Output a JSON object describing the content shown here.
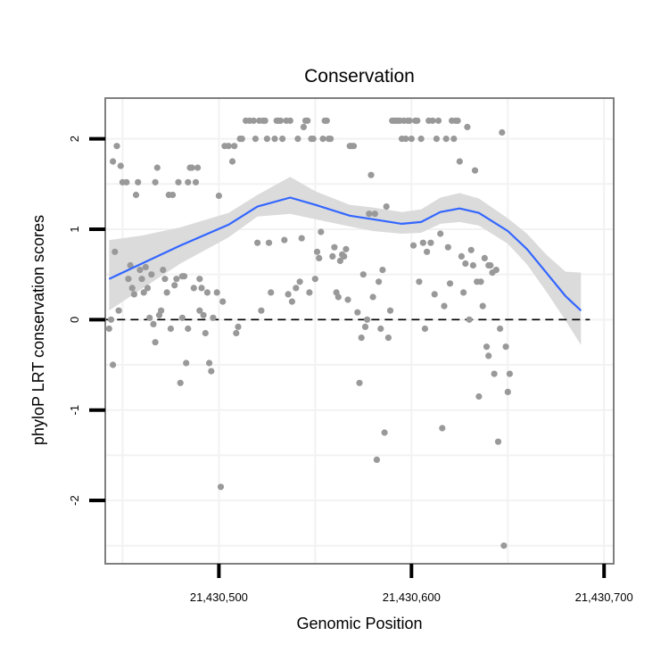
{
  "chart_data": {
    "type": "scatter",
    "title": "Conservation",
    "xlabel": "Genomic Position",
    "ylabel": "phyloP LRT conservation scores",
    "xlim": [
      21430441,
      21430705
    ],
    "ylim": [
      -2.7,
      2.45
    ],
    "x_ticks": [
      21430500,
      21430600,
      21430700
    ],
    "x_tick_labels": [
      "21,430,500",
      "21,430,600",
      "21,430,700"
    ],
    "y_ticks": [
      -2,
      -1,
      0,
      1,
      2
    ],
    "y_tick_labels": [
      "-2",
      "-1",
      "0",
      "1",
      "2"
    ],
    "grid": true,
    "reference_line": {
      "y": 0,
      "style": "dashed"
    },
    "colors": {
      "points": "#999999",
      "smooth": "#3366ff",
      "ribbon": "#d9d9d9",
      "border": "#7f7f7f",
      "grid": "#f2f2f2"
    },
    "smooth": {
      "x": [
        21430443,
        21430460,
        21430480,
        21430505,
        21430520,
        21430537,
        21430550,
        21430568,
        21430580,
        21430595,
        21430605,
        21430615,
        21430625,
        21430635,
        21430650,
        21430660,
        21430670,
        21430680,
        21430688
      ],
      "y": [
        0.45,
        0.62,
        0.82,
        1.05,
        1.25,
        1.35,
        1.27,
        1.15,
        1.11,
        1.06,
        1.08,
        1.19,
        1.23,
        1.18,
        0.98,
        0.78,
        0.52,
        0.26,
        0.1
      ],
      "upper": [
        0.88,
        0.93,
        1.02,
        1.18,
        1.38,
        1.58,
        1.42,
        1.27,
        1.24,
        1.19,
        1.22,
        1.35,
        1.4,
        1.34,
        1.12,
        0.95,
        0.72,
        0.53,
        0.52
      ],
      "lower": [
        0.1,
        0.34,
        0.62,
        0.91,
        1.14,
        1.17,
        1.11,
        1.03,
        0.98,
        0.95,
        0.96,
        1.06,
        1.08,
        1.04,
        0.84,
        0.61,
        0.31,
        -0.01,
        -0.28
      ]
    },
    "points": [
      [
        21430443,
        -0.1
      ],
      [
        21430444,
        0.0
      ],
      [
        21430445,
        -0.5
      ],
      [
        21430445,
        1.75
      ],
      [
        21430446,
        0.75
      ],
      [
        21430447,
        1.92
      ],
      [
        21430448,
        0.1
      ],
      [
        21430449,
        1.7
      ],
      [
        21430450,
        1.52
      ],
      [
        21430452,
        1.52
      ],
      [
        21430453,
        0.45
      ],
      [
        21430454,
        0.6
      ],
      [
        21430455,
        0.35
      ],
      [
        21430456,
        0.28
      ],
      [
        21430457,
        1.38
      ],
      [
        21430458,
        1.52
      ],
      [
        21430459,
        0.55
      ],
      [
        21430460,
        0.45
      ],
      [
        21430461,
        0.3
      ],
      [
        21430462,
        0.58
      ],
      [
        21430463,
        0.35
      ],
      [
        21430464,
        0.02
      ],
      [
        21430465,
        0.5
      ],
      [
        21430466,
        -0.05
      ],
      [
        21430467,
        -0.25
      ],
      [
        21430467,
        1.52
      ],
      [
        21430468,
        1.68
      ],
      [
        21430469,
        0.05
      ],
      [
        21430470,
        0.1
      ],
      [
        21430471,
        0.55
      ],
      [
        21430472,
        0.45
      ],
      [
        21430473,
        0.3
      ],
      [
        21430474,
        1.38
      ],
      [
        21430475,
        -0.1
      ],
      [
        21430476,
        1.38
      ],
      [
        21430477,
        0.38
      ],
      [
        21430478,
        0.45
      ],
      [
        21430479,
        1.52
      ],
      [
        21430480,
        -0.7
      ],
      [
        21430481,
        0.48
      ],
      [
        21430481,
        0.02
      ],
      [
        21430482,
        0.48
      ],
      [
        21430483,
        -0.48
      ],
      [
        21430484,
        -0.1
      ],
      [
        21430484,
        1.52
      ],
      [
        21430485,
        1.68
      ],
      [
        21430486,
        1.68
      ],
      [
        21430487,
        0.35
      ],
      [
        21430488,
        1.52
      ],
      [
        21430489,
        1.68
      ],
      [
        21430490,
        0.45
      ],
      [
        21430490,
        0.1
      ],
      [
        21430491,
        0.35
      ],
      [
        21430492,
        0.05
      ],
      [
        21430493,
        -0.15
      ],
      [
        21430494,
        0.3
      ],
      [
        21430495,
        -0.48
      ],
      [
        21430496,
        -0.57
      ],
      [
        21430497,
        0.02
      ],
      [
        21430499,
        0.3
      ],
      [
        21430500,
        1.37
      ],
      [
        21430501,
        -1.85
      ],
      [
        21430502,
        0.2
      ],
      [
        21430503,
        1.92
      ],
      [
        21430505,
        1.92
      ],
      [
        21430507,
        1.75
      ],
      [
        21430508,
        1.92
      ],
      [
        21430509,
        -0.15
      ],
      [
        21430510,
        -0.08
      ],
      [
        21430511,
        2.0
      ],
      [
        21430512,
        2.0
      ],
      [
        21430514,
        2.2
      ],
      [
        21430516,
        2.2
      ],
      [
        21430518,
        2.2
      ],
      [
        21430519,
        2.0
      ],
      [
        21430520,
        0.85
      ],
      [
        21430521,
        2.2
      ],
      [
        21430522,
        0.1
      ],
      [
        21430523,
        2.2
      ],
      [
        21430524,
        2.2
      ],
      [
        21430525,
        2.0
      ],
      [
        21430526,
        0.85
      ],
      [
        21430527,
        0.3
      ],
      [
        21430529,
        2.0
      ],
      [
        21430530,
        2.2
      ],
      [
        21430531,
        2.2
      ],
      [
        21430532,
        2.2
      ],
      [
        21430533,
        2.0
      ],
      [
        21430534,
        0.88
      ],
      [
        21430535,
        2.2
      ],
      [
        21430536,
        0.28
      ],
      [
        21430537,
        2.2
      ],
      [
        21430538,
        0.2
      ],
      [
        21430540,
        0.35
      ],
      [
        21430541,
        2.0
      ],
      [
        21430542,
        0.42
      ],
      [
        21430543,
        0.9
      ],
      [
        21430544,
        2.13
      ],
      [
        21430545,
        2.2
      ],
      [
        21430546,
        2.2
      ],
      [
        21430547,
        0.3
      ],
      [
        21430548,
        2.0
      ],
      [
        21430549,
        2.0
      ],
      [
        21430550,
        0.45
      ],
      [
        21430551,
        0.75
      ],
      [
        21430552,
        0.68
      ],
      [
        21430553,
        0.97
      ],
      [
        21430554,
        2.0
      ],
      [
        21430555,
        2.2
      ],
      [
        21430556,
        2.2
      ],
      [
        21430557,
        2.0
      ],
      [
        21430558,
        2.0
      ],
      [
        21430559,
        0.7
      ],
      [
        21430560,
        0.8
      ],
      [
        21430561,
        0.3
      ],
      [
        21430562,
        0.25
      ],
      [
        21430563,
        0.65
      ],
      [
        21430564,
        0.72
      ],
      [
        21430565,
        0.7
      ],
      [
        21430566,
        0.78
      ],
      [
        21430567,
        0.22
      ],
      [
        21430568,
        1.92
      ],
      [
        21430569,
        1.92
      ],
      [
        21430570,
        1.92
      ],
      [
        21430572,
        0.08
      ],
      [
        21430573,
        -0.7
      ],
      [
        21430574,
        -0.2
      ],
      [
        21430575,
        0.5
      ],
      [
        21430576,
        -0.08
      ],
      [
        21430577,
        0.0
      ],
      [
        21430578,
        1.17
      ],
      [
        21430579,
        1.6
      ],
      [
        21430580,
        0.25
      ],
      [
        21430581,
        1.17
      ],
      [
        21430582,
        -1.55
      ],
      [
        21430583,
        0.42
      ],
      [
        21430584,
        -0.1
      ],
      [
        21430585,
        0.55
      ],
      [
        21430586,
        -1.25
      ],
      [
        21430587,
        1.25
      ],
      [
        21430588,
        -0.2
      ],
      [
        21430589,
        0.1
      ],
      [
        21430590,
        2.2
      ],
      [
        21430591,
        2.2
      ],
      [
        21430592,
        2.2
      ],
      [
        21430593,
        2.2
      ],
      [
        21430594,
        2.2
      ],
      [
        21430595,
        2.0
      ],
      [
        21430596,
        2.2
      ],
      [
        21430597,
        2.0
      ],
      [
        21430598,
        2.2
      ],
      [
        21430599,
        2.2
      ],
      [
        21430600,
        2.0
      ],
      [
        21430601,
        0.82
      ],
      [
        21430602,
        2.2
      ],
      [
        21430603,
        2.2
      ],
      [
        21430604,
        0.42
      ],
      [
        21430605,
        2.0
      ],
      [
        21430606,
        0.85
      ],
      [
        21430607,
        -0.1
      ],
      [
        21430608,
        0.75
      ],
      [
        21430609,
        2.2
      ],
      [
        21430610,
        0.85
      ],
      [
        21430611,
        2.2
      ],
      [
        21430612,
        0.28
      ],
      [
        21430613,
        2.0
      ],
      [
        21430614,
        2.2
      ],
      [
        21430615,
        0.95
      ],
      [
        21430616,
        -1.2
      ],
      [
        21430617,
        0.15
      ],
      [
        21430618,
        2.0
      ],
      [
        21430619,
        0.8
      ],
      [
        21430620,
        0.4
      ],
      [
        21430621,
        2.2
      ],
      [
        21430622,
        2.0
      ],
      [
        21430623,
        2.2
      ],
      [
        21430624,
        2.2
      ],
      [
        21430625,
        1.75
      ],
      [
        21430626,
        0.7
      ],
      [
        21430627,
        0.3
      ],
      [
        21430628,
        0.62
      ],
      [
        21430629,
        2.13
      ],
      [
        21430630,
        0.0
      ],
      [
        21430631,
        0.77
      ],
      [
        21430632,
        0.6
      ],
      [
        21430633,
        1.65
      ],
      [
        21430634,
        0.42
      ],
      [
        21430635,
        -0.85
      ],
      [
        21430636,
        0.42
      ],
      [
        21430637,
        0.15
      ],
      [
        21430638,
        0.68
      ],
      [
        21430639,
        -0.3
      ],
      [
        21430640,
        -0.4
      ],
      [
        21430640,
        0.6
      ],
      [
        21430641,
        0.6
      ],
      [
        21430642,
        0.52
      ],
      [
        21430643,
        -0.6
      ],
      [
        21430644,
        0.55
      ],
      [
        21430645,
        -1.35
      ],
      [
        21430646,
        -0.1
      ],
      [
        21430647,
        2.07
      ],
      [
        21430648,
        -2.5
      ],
      [
        21430649,
        -0.3
      ],
      [
        21430650,
        -0.8
      ],
      [
        21430651,
        -0.6
      ]
    ]
  }
}
